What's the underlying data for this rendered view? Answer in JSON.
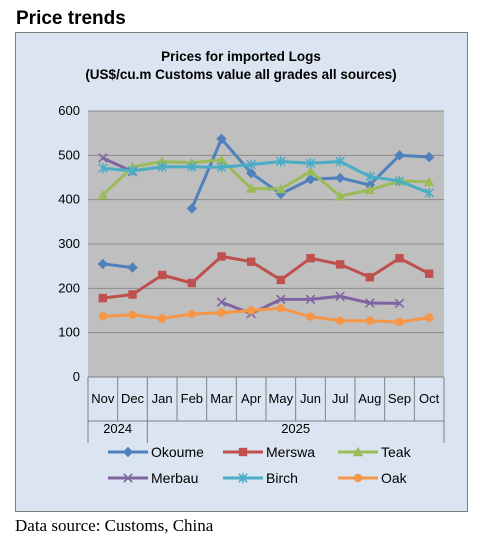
{
  "page": {
    "heading": "Price trends",
    "source": "Data source: Customs, China"
  },
  "chart_data": {
    "type": "line",
    "title": "Prices for imported Logs",
    "subtitle": "(US$/cu.m Customs value all grades all sources)",
    "categories": [
      "Nov",
      "Dec",
      "Jan",
      "Feb",
      "Mar",
      "Apr",
      "May",
      "Jun",
      "Jul",
      "Aug",
      "Sep",
      "Oct"
    ],
    "year_groups": [
      {
        "label": "2024",
        "count": 2
      },
      {
        "label": "2025",
        "count": 10
      }
    ],
    "ylim": [
      0,
      600
    ],
    "yticks": [
      0,
      100,
      200,
      300,
      400,
      500,
      600
    ],
    "grid": true,
    "legend_position": "bottom",
    "series": [
      {
        "name": "Okoume",
        "color": "#4f81bd",
        "marker": "diamond",
        "values": [
          255,
          247,
          null,
          380,
          537,
          460,
          413,
          446,
          449,
          433,
          500,
          496
        ]
      },
      {
        "name": "Merswa",
        "color": "#c0504d",
        "marker": "square",
        "values": [
          178,
          186,
          230,
          212,
          272,
          260,
          219,
          268,
          254,
          225,
          268,
          233
        ]
      },
      {
        "name": "Teak",
        "color": "#9bbb59",
        "marker": "triangle",
        "values": [
          410,
          474,
          486,
          483,
          490,
          425,
          424,
          464,
          408,
          422,
          442,
          440
        ]
      },
      {
        "name": "Merbau",
        "color": "#8064a2",
        "marker": "x",
        "values": [
          494,
          463,
          null,
          null,
          169,
          143,
          175,
          175,
          182,
          167,
          166,
          null
        ]
      },
      {
        "name": "Birch",
        "color": "#4bacc6",
        "marker": "star",
        "values": [
          471,
          465,
          474,
          474,
          473,
          479,
          486,
          482,
          486,
          452,
          442,
          415
        ]
      },
      {
        "name": "Oak",
        "color": "#f79646",
        "marker": "circle",
        "values": [
          137,
          140,
          132,
          142,
          145,
          150,
          155,
          136,
          127,
          127,
          124,
          134
        ]
      }
    ]
  }
}
